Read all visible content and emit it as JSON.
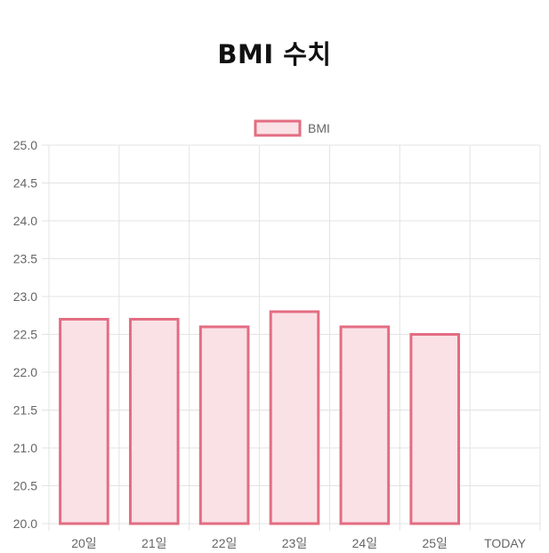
{
  "page": {
    "title": "BMI 수치"
  },
  "colors": {
    "bar_fill": "#fae1e6",
    "bar_border": "#e36d82",
    "grid": "#e3e3e3",
    "tick_text": "#666666"
  },
  "chart_data": {
    "type": "bar",
    "title": "",
    "xlabel": "",
    "ylabel": "",
    "categories": [
      "20일",
      "21일",
      "22일",
      "23일",
      "24일",
      "25일",
      "TODAY"
    ],
    "series": [
      {
        "name": "BMI",
        "values": [
          22.7,
          22.7,
          22.6,
          22.8,
          22.6,
          22.5,
          null
        ]
      }
    ],
    "ylim": [
      20.0,
      25.0
    ],
    "yticks": [
      "20.0",
      "20.5",
      "21.0",
      "21.5",
      "22.0",
      "22.5",
      "23.0",
      "23.5",
      "24.0",
      "24.5",
      "25.0"
    ],
    "grid": true,
    "legend_position": "top"
  }
}
